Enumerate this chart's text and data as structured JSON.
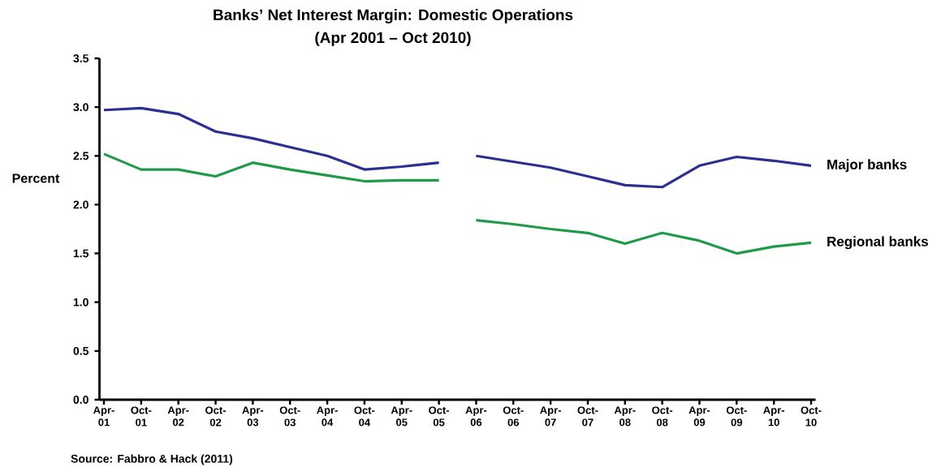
{
  "chart_data": {
    "type": "line",
    "title": "Banks’ Net Interest Margin: Domestic Operations",
    "subtitle": "(Apr 2001 – Oct 2010)",
    "ylabel": "Percent",
    "categories": [
      "Apr-01",
      "Oct-01",
      "Apr-02",
      "Oct-02",
      "Apr-03",
      "Oct-03",
      "Apr-04",
      "Oct-04",
      "Apr-05",
      "Oct-05",
      "Apr-06",
      "Oct-06",
      "Apr-07",
      "Oct-07",
      "Apr-08",
      "Oct-08",
      "Apr-09",
      "Oct-09",
      "Apr-10",
      "Oct-10"
    ],
    "series": [
      {
        "color": "#2b2f8f",
        "values": [
          2.97,
          2.99,
          2.93,
          2.75,
          2.68,
          2.59,
          2.5,
          2.36,
          2.39,
          2.43,
          null,
          null,
          null,
          null,
          null,
          null,
          null,
          null,
          null,
          null
        ]
      },
      {
        "name": "Major banks",
        "color": "#2b2f8f",
        "values": [
          null,
          null,
          null,
          null,
          null,
          null,
          null,
          null,
          null,
          null,
          2.5,
          2.44,
          2.38,
          2.29,
          2.2,
          2.18,
          2.4,
          2.49,
          2.45,
          2.4
        ]
      },
      {
        "color": "#1f9a48",
        "values": [
          2.52,
          2.36,
          2.36,
          2.29,
          2.43,
          2.36,
          2.3,
          2.24,
          2.25,
          2.25,
          null,
          null,
          null,
          null,
          null,
          null,
          null,
          null,
          null,
          null
        ]
      },
      {
        "name": "Regional banks",
        "color": "#1f9a48",
        "values": [
          null,
          null,
          null,
          null,
          null,
          null,
          null,
          null,
          null,
          null,
          1.84,
          1.8,
          1.75,
          1.71,
          1.6,
          1.71,
          1.63,
          1.5,
          1.57,
          1.61
        ]
      }
    ],
    "ylim": [
      0,
      3.5
    ],
    "yticks": [
      {
        "value": 0,
        "label": "0.0"
      },
      {
        "value": 0.5,
        "label": "0.5"
      },
      {
        "value": 1,
        "label": "1.0"
      },
      {
        "value": 1.5,
        "label": "1.5"
      },
      {
        "value": 2,
        "label": "2.0"
      },
      {
        "value": 2.5,
        "label": "2.5"
      },
      {
        "value": 3,
        "label": "3.0"
      },
      {
        "value": 3.5,
        "label": "3.5"
      }
    ],
    "annotations": [
      "Source: Fabbro & Hack (2011)"
    ]
  }
}
